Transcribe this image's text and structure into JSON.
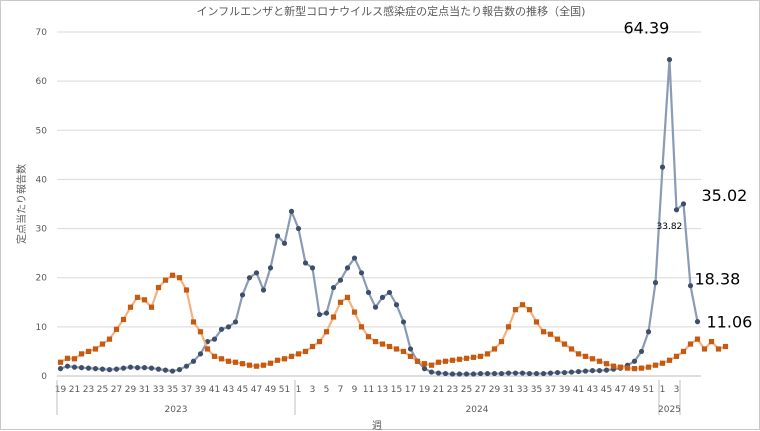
{
  "chart_data": {
    "type": "line",
    "title": "インフルエンザと新型コロナウイルス感染症の定点当たり報告数の推移（全国)",
    "xlabel": "週",
    "ylabel": "定点当たり報告数",
    "ylim": [
      0,
      70
    ],
    "y_ticks": [
      "0",
      "10",
      "20",
      "30",
      "40",
      "50",
      "60",
      "70"
    ],
    "grid": true,
    "week_labels": [
      "19",
      "21",
      "23",
      "25",
      "27",
      "29",
      "31",
      "33",
      "35",
      "37",
      "39",
      "41",
      "43",
      "45",
      "47",
      "49",
      "51",
      "1",
      "3",
      "5",
      "7",
      "9",
      "11",
      "13",
      "15",
      "17",
      "19",
      "21",
      "23",
      "25",
      "27",
      "29",
      "31",
      "33",
      "35",
      "37",
      "39",
      "41",
      "43",
      "45",
      "47",
      "49",
      "51",
      "1",
      "3"
    ],
    "years": [
      {
        "label": "2023",
        "start_index": 0,
        "end_index": 33
      },
      {
        "label": "2024",
        "start_index": 34,
        "end_index": 85
      },
      {
        "label": "2025",
        "start_index": 86,
        "end_index": 88
      }
    ],
    "series": [
      {
        "key": "influenza",
        "color": "#3f4f6b",
        "line_color": "#8a9bb5",
        "marker": "circle",
        "values": [
          1.5,
          2.0,
          1.8,
          1.7,
          1.6,
          1.5,
          1.4,
          1.3,
          1.4,
          1.6,
          1.8,
          1.7,
          1.7,
          1.6,
          1.4,
          1.2,
          1.0,
          1.3,
          2.0,
          3.0,
          4.5,
          7.0,
          7.5,
          9.5,
          10.0,
          11.0,
          16.5,
          20.0,
          21.0,
          17.5,
          22.0,
          28.5,
          27.0,
          33.5,
          30.0,
          23.0,
          22.0,
          12.5,
          12.8,
          18.0,
          19.5,
          22.0,
          24.0,
          21.0,
          17.0,
          14.0,
          16.0,
          17.0,
          14.5,
          11.0,
          5.5,
          3.0,
          1.5,
          0.8,
          0.6,
          0.5,
          0.4,
          0.4,
          0.4,
          0.4,
          0.5,
          0.5,
          0.5,
          0.5,
          0.6,
          0.6,
          0.6,
          0.5,
          0.5,
          0.5,
          0.6,
          0.7,
          0.7,
          0.8,
          0.9,
          1.0,
          1.1,
          1.1,
          1.2,
          1.4,
          1.6,
          2.2,
          3.0,
          5.0,
          9.0,
          19.0,
          42.5,
          64.39,
          33.82,
          35.02,
          18.38,
          11.06
        ]
      },
      {
        "key": "covid",
        "color": "#c55a11",
        "line_color": "#f4b183",
        "marker": "square",
        "values": [
          2.8,
          3.6,
          3.5,
          4.5,
          5.0,
          5.5,
          6.5,
          7.5,
          9.5,
          11.5,
          14.0,
          16.0,
          15.5,
          14.0,
          18.0,
          19.5,
          20.5,
          20.0,
          17.5,
          11.0,
          9.0,
          5.5,
          4.0,
          3.5,
          3.0,
          2.8,
          2.5,
          2.2,
          2.0,
          2.2,
          2.6,
          3.2,
          3.5,
          4.0,
          4.5,
          5.0,
          6.0,
          7.0,
          9.0,
          12.0,
          15.0,
          16.0,
          13.0,
          10.0,
          8.0,
          7.0,
          6.5,
          6.0,
          5.5,
          5.0,
          4.0,
          3.0,
          2.5,
          2.2,
          2.8,
          3.0,
          3.2,
          3.4,
          3.6,
          3.8,
          4.0,
          4.5,
          5.5,
          7.0,
          10.0,
          13.5,
          14.5,
          13.5,
          11.0,
          9.0,
          8.5,
          7.5,
          6.5,
          5.5,
          4.5,
          4.0,
          3.5,
          3.0,
          2.5,
          2.0,
          1.8,
          1.6,
          1.5,
          1.6,
          1.8,
          2.2,
          2.6,
          3.2,
          4.0,
          5.0,
          6.5,
          7.5,
          5.5,
          7.0,
          5.5,
          6.0
        ]
      }
    ],
    "annotations": [
      {
        "text": "64.39",
        "target_series": 0,
        "target_index": 87
      },
      {
        "text": "35.02",
        "target_series": 0,
        "target_index": 89
      },
      {
        "text": "33.82",
        "target_series": 0,
        "target_index": 88
      },
      {
        "text": "18.38",
        "target_series": 0,
        "target_index": 90
      },
      {
        "text": "11.06",
        "target_series": 0,
        "target_index": 91
      }
    ]
  }
}
